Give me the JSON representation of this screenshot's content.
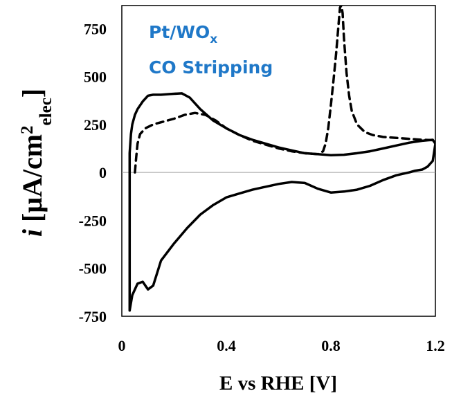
{
  "chart_data": {
    "type": "line",
    "title": "",
    "annotation": {
      "line1_main": "Pt/WO",
      "line1_sub": "x",
      "line2": "CO Stripping",
      "color": "#1f78c8"
    },
    "xlabel": "E vs RHE [V]",
    "ylabel": {
      "italic": "i",
      "main": " [μA/cm",
      "sup": "2",
      "sub": "elec",
      "close": "]"
    },
    "xlim": [
      0,
      1.2
    ],
    "ylim": [
      -750,
      870
    ],
    "x_ticks": [
      "0",
      "0.4",
      "0.8",
      "1.2"
    ],
    "x_tick_values": [
      0,
      0.4,
      0.8,
      1.2
    ],
    "y_ticks": [
      "750",
      "500",
      "250",
      "0",
      "-250",
      "-500",
      "-750"
    ],
    "y_tick_values": [
      750,
      500,
      250,
      0,
      -250,
      -500,
      -750
    ],
    "grid": false,
    "zero_line": true,
    "series": [
      {
        "style": "solid",
        "color": "#000000",
        "x": [
          0.03,
          0.035,
          0.04,
          0.05,
          0.06,
          0.08,
          0.1,
          0.12,
          0.15,
          0.18,
          0.2,
          0.23,
          0.26,
          0.3,
          0.35,
          0.4,
          0.45,
          0.5,
          0.55,
          0.6,
          0.65,
          0.7,
          0.75,
          0.8,
          0.85,
          0.9,
          0.95,
          1.0,
          1.05,
          1.1,
          1.15,
          1.19,
          1.2,
          1.19,
          1.17,
          1.15,
          1.12,
          1.1,
          1.05,
          1.0,
          0.95,
          0.9,
          0.85,
          0.8,
          0.75,
          0.7,
          0.65,
          0.6,
          0.55,
          0.5,
          0.45,
          0.4,
          0.35,
          0.3,
          0.25,
          0.2,
          0.15,
          0.12,
          0.1,
          0.08,
          0.06,
          0.04,
          0.03,
          0.03,
          0.03
        ],
        "y": [
          100,
          200,
          250,
          300,
          330,
          370,
          400,
          405,
          405,
          408,
          410,
          412,
          390,
          330,
          270,
          230,
          195,
          170,
          150,
          130,
          115,
          100,
          95,
          90,
          92,
          100,
          110,
          125,
          140,
          155,
          165,
          170,
          150,
          60,
          30,
          15,
          8,
          0,
          -15,
          -40,
          -70,
          -90,
          -100,
          -105,
          -85,
          -55,
          -50,
          -60,
          -75,
          -90,
          -110,
          -130,
          -170,
          -220,
          -290,
          -370,
          -460,
          -590,
          -610,
          -570,
          -580,
          -640,
          -720,
          -400,
          100
        ]
      },
      {
        "style": "dashed",
        "color": "#000000",
        "x": [
          0.05,
          0.055,
          0.06,
          0.07,
          0.09,
          0.12,
          0.16,
          0.2,
          0.24,
          0.28,
          0.32,
          0.36,
          0.4,
          0.45,
          0.5,
          0.55,
          0.6,
          0.65,
          0.7,
          0.75,
          0.77,
          0.78,
          0.79,
          0.8,
          0.81,
          0.82,
          0.83,
          0.835,
          0.84,
          0.845,
          0.85,
          0.86,
          0.87,
          0.88,
          0.9,
          0.93,
          0.96,
          1.0,
          1.05,
          1.1,
          1.15,
          1.2
        ],
        "y": [
          0,
          80,
          150,
          200,
          230,
          250,
          265,
          280,
          300,
          310,
          300,
          270,
          230,
          195,
          165,
          145,
          125,
          110,
          100,
          95,
          110,
          150,
          230,
          350,
          480,
          620,
          780,
          860,
          870,
          830,
          700,
          520,
          400,
          320,
          250,
          210,
          195,
          185,
          180,
          175,
          170,
          168
        ]
      }
    ]
  }
}
